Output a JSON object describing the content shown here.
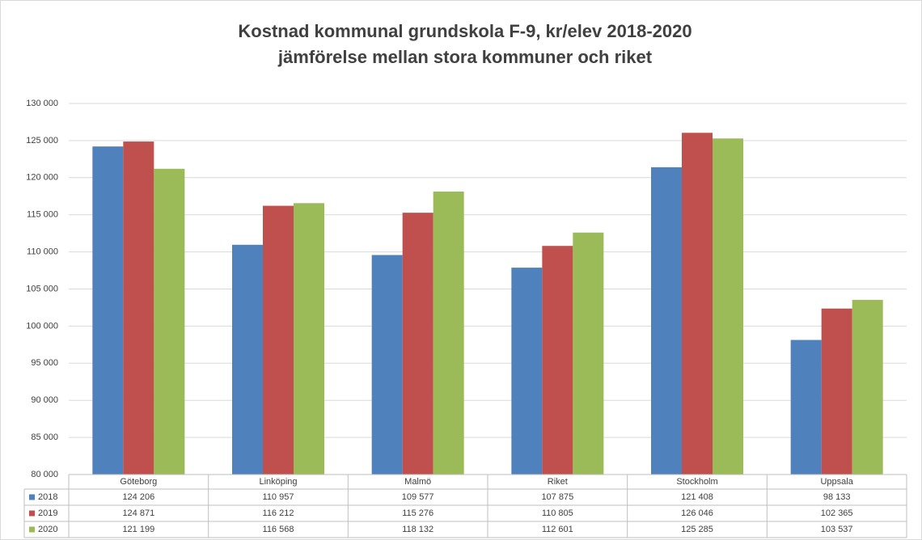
{
  "chart_data": {
    "type": "bar",
    "title": [
      "Kostnad kommunal grundskola F-9, kr/elev 2018-2020",
      "jämförelse mellan stora kommuner och riket"
    ],
    "categories": [
      "Göteborg",
      "Linköping",
      "Malmö",
      "Riket",
      "Stockholm",
      "Uppsala"
    ],
    "series": [
      {
        "name": "2018",
        "color": "#4f81bd",
        "values": [
          124206,
          110957,
          109577,
          107875,
          121408,
          98133
        ],
        "value_labels": [
          "124 206",
          "110 957",
          "109 577",
          "107 875",
          "121 408",
          "98 133"
        ]
      },
      {
        "name": "2019",
        "color": "#c0504d",
        "values": [
          124871,
          116212,
          115276,
          110805,
          126046,
          102365
        ],
        "value_labels": [
          "124 871",
          "116 212",
          "115 276",
          "110 805",
          "126 046",
          "102 365"
        ]
      },
      {
        "name": "2020",
        "color": "#9bbb59",
        "values": [
          121199,
          116568,
          118132,
          112601,
          125285,
          103537
        ],
        "value_labels": [
          "121 199",
          "116 568",
          "118 132",
          "112 601",
          "125 285",
          "103 537"
        ]
      }
    ],
    "ylim": [
      80000,
      130000
    ],
    "yticks": [
      {
        "value": 80000,
        "label": "80 000"
      },
      {
        "value": 85000,
        "label": "85 000"
      },
      {
        "value": 90000,
        "label": "90 000"
      },
      {
        "value": 95000,
        "label": "95 000"
      },
      {
        "value": 100000,
        "label": "100 000"
      },
      {
        "value": 105000,
        "label": "105 000"
      },
      {
        "value": 110000,
        "label": "110 000"
      },
      {
        "value": 115000,
        "label": "115 000"
      },
      {
        "value": 120000,
        "label": "120 000"
      },
      {
        "value": 125000,
        "label": "125 000"
      },
      {
        "value": 130000,
        "label": "130 000"
      }
    ],
    "grid": true
  }
}
